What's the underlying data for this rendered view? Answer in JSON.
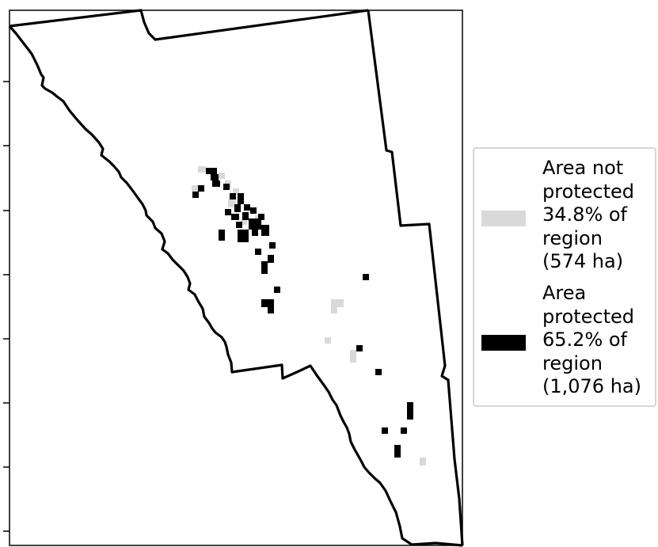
{
  "map": {
    "layers": [
      {
        "name": "Area not protected",
        "color": "#d9d9d9"
      },
      {
        "name": "Area protected",
        "color": "#000000"
      }
    ],
    "region_outline_color": "#000000"
  },
  "legend": {
    "entries": [
      {
        "text": "Area not\nprotected\n34.8% of\nregion\n(574 ha)",
        "color": "#d9d9d9"
      },
      {
        "text": "Area\nprotected\n65.2% of\nregion\n(1,076 ha)",
        "color": "#000000"
      }
    ]
  }
}
